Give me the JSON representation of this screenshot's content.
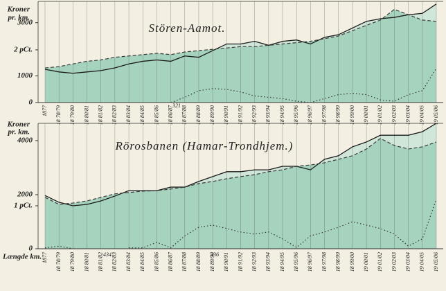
{
  "chart_data": [
    {
      "type": "line",
      "title": "Stören-Aamot.",
      "ylabel": [
        "Kroner",
        "pr. km."
      ],
      "categories": [
        "1877",
        "18 78/79",
        "18 79/80",
        "18 80/81",
        "18 81/82",
        "18 82/83",
        "18 83/84",
        "18 84/85",
        "18 85/86",
        "18 86/87",
        "18 87/88",
        "18 88/89",
        "18 89/90",
        "18 90/91",
        "18 91/92",
        "18 92/93",
        "18 93/94",
        "18 94/95",
        "18 95/96",
        "18 96/97",
        "18 97/98",
        "18 98/99",
        "18 99/00",
        "19 00/01",
        "19 01/02",
        "19 02/03",
        "19 03/04",
        "19 04/05",
        "19 05/06"
      ],
      "series": [
        {
          "color": "#1a1a1a",
          "line_style": "solid",
          "fill": "#cfe6d8",
          "values": [
            1250,
            1150,
            1100,
            1150,
            1200,
            1300,
            1450,
            1550,
            1600,
            1550,
            1750,
            1700,
            1950,
            2200,
            2200,
            2300,
            2150,
            2300,
            2350,
            2200,
            2450,
            2550,
            2800,
            3050,
            3150,
            3200,
            3300,
            3350,
            3700
          ]
        },
        {
          "color": "#3a3a3a",
          "line_style": "dashed",
          "fill": "#a6d3bd",
          "values": [
            1300,
            1350,
            1450,
            1550,
            1600,
            1700,
            1750,
            1800,
            1850,
            1800,
            1900,
            1950,
            2000,
            2050,
            2100,
            2100,
            2150,
            2200,
            2250,
            2300,
            2400,
            2500,
            2700,
            2900,
            3100,
            3500,
            3300,
            3100,
            3050
          ]
        },
        {
          "color": "#333333",
          "line_style": "dotted",
          "axis": "y2",
          "values": [
            null,
            null,
            null,
            null,
            null,
            null,
            null,
            null,
            null,
            0,
            0.2,
            0.45,
            0.53,
            0.5,
            0.4,
            0.25,
            0.2,
            0.15,
            0.05,
            0,
            0.15,
            0.3,
            0.35,
            0.3,
            0.1,
            0.05,
            0.3,
            0.45,
            1.3
          ]
        }
      ],
      "ylim": [
        0,
        3800
      ],
      "yticks": [
        0,
        1000,
        3000
      ],
      "y2lim": [
        0,
        3.84
      ],
      "y2ticks": [
        {
          "value": 2,
          "label": "2 pCt."
        }
      ],
      "xgrid": true,
      "annotations": [
        {
          "text": "321"
        }
      ]
    },
    {
      "type": "line",
      "title": "Rörosbanen (Hamar-Trondhjem.)",
      "ylabel": [
        "Kroner",
        "pr. km."
      ],
      "xlabel": "Længde km.",
      "categories": [
        "1877",
        "18 78/79",
        "18 79/80",
        "18 80/81",
        "18 81/82",
        "18 82/83",
        "18 83/84",
        "18 84/85",
        "18 85/86",
        "18 86/87",
        "18 87/88",
        "18 88/89",
        "18 89/90",
        "18 90/91",
        "18 91/92",
        "18 92/93",
        "18 93/94",
        "18 94/95",
        "18 95/96",
        "18 96/97",
        "18 97/98",
        "18 98/99",
        "18 99/00",
        "19 00/01",
        "19 01/02",
        "19 02/03",
        "19 03/04",
        "19 04/05",
        "19 05/06"
      ],
      "series": [
        {
          "color": "#1a1a1a",
          "line_style": "solid",
          "fill": "#cfe6d8",
          "values": [
            1970,
            1720,
            1590,
            1640,
            1770,
            1950,
            2150,
            2150,
            2150,
            2280,
            2280,
            2490,
            2670,
            2850,
            2850,
            2920,
            2920,
            3050,
            3050,
            2920,
            3310,
            3440,
            3770,
            3950,
            4200,
            4200,
            4200,
            4330,
            4640
          ]
        },
        {
          "color": "#3a3a3a",
          "line_style": "dashed",
          "fill": "#a6d3bd",
          "values": [
            1900,
            1640,
            1690,
            1770,
            1900,
            2030,
            2080,
            2130,
            2150,
            2210,
            2280,
            2410,
            2490,
            2590,
            2670,
            2740,
            2850,
            2920,
            3050,
            3100,
            3180,
            3310,
            3440,
            3690,
            4080,
            3820,
            3690,
            3770,
            3950
          ]
        },
        {
          "color": "#333333",
          "line_style": "dotted",
          "axis": "y2",
          "values": [
            0.02,
            0.06,
            0,
            null,
            null,
            null,
            0.02,
            0.02,
            0.15,
            0.02,
            0.3,
            0.5,
            0.55,
            0.47,
            0.39,
            0.34,
            0.39,
            0.23,
            0.03,
            0.3,
            0.39,
            0.5,
            0.63,
            0.55,
            0.47,
            0.34,
            0.06,
            0.23,
            1.15
          ]
        }
      ],
      "ylim": [
        0,
        4640
      ],
      "yticks": [
        0,
        2000,
        4000
      ],
      "y2lim": [
        0,
        2.92
      ],
      "y2ticks": [
        {
          "value": 1,
          "label": "1 pCt."
        }
      ],
      "xgrid": true,
      "annotations": [
        {
          "text": "434"
        },
        {
          "text": "436"
        }
      ]
    }
  ]
}
